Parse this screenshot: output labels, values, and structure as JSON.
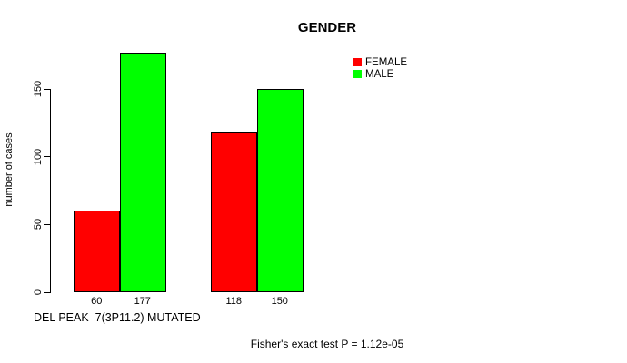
{
  "title": "GENDER",
  "ylabel": "number of cases",
  "xlabel": "DEL PEAK  7(3P11.2) MUTATED",
  "footer": "Fisher's exact test P = 1.12e-05",
  "legend": {
    "items": [
      {
        "label": "FEMALE",
        "color": "#FF0000"
      },
      {
        "label": "MALE",
        "color": "#00FF00"
      }
    ]
  },
  "chart_data": {
    "type": "bar",
    "title": "GENDER",
    "xlabel": "DEL PEAK  7(3P11.2) MUTATED",
    "ylabel": "number of cases",
    "groups": [
      "group-1",
      "group-2"
    ],
    "series": [
      {
        "name": "FEMALE",
        "color": "#FF0000",
        "values": [
          60,
          118
        ]
      },
      {
        "name": "MALE",
        "color": "#00FF00",
        "values": [
          177,
          150
        ]
      }
    ],
    "bar_value_labels": [
      "60",
      "177",
      "118",
      "150"
    ],
    "yticks": [
      0,
      50,
      100,
      150
    ],
    "ylim": [
      0,
      177
    ],
    "grid": false,
    "legend_position": "top-right",
    "annotation": "Fisher's exact test P = 1.12e-05"
  }
}
